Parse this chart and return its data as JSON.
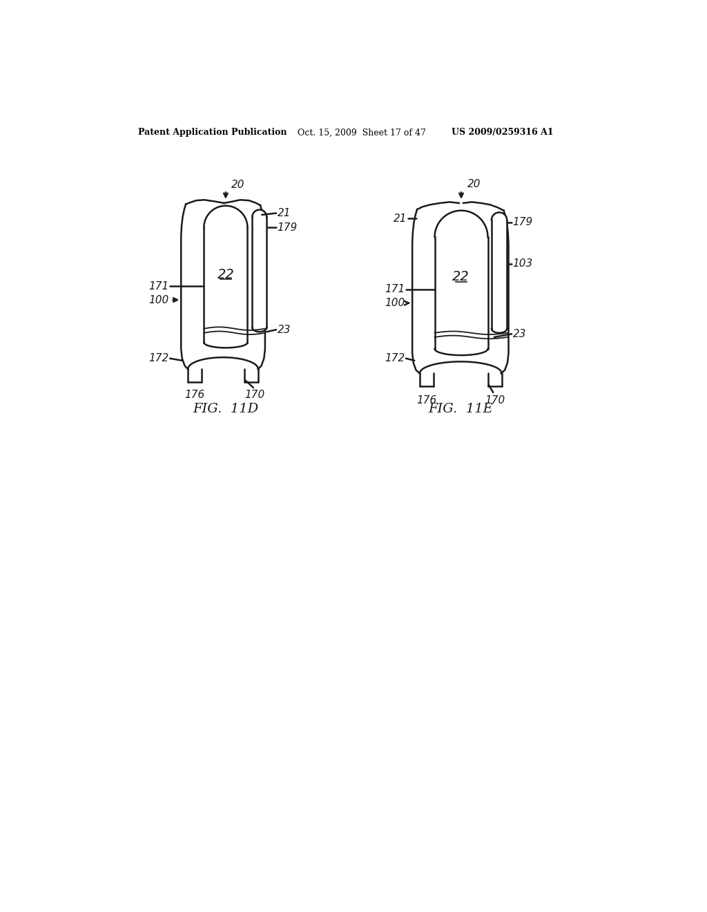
{
  "bg_color": "#ffffff",
  "header_left": "Patent Application Publication",
  "header_mid": "Oct. 15, 2009  Sheet 17 of 47",
  "header_right": "US 2009/0259316 A1",
  "fig_label_left": "FIG.  11D",
  "fig_label_right": "FIG.  11E",
  "line_color": "#1a1a1a",
  "line_width": 1.8
}
